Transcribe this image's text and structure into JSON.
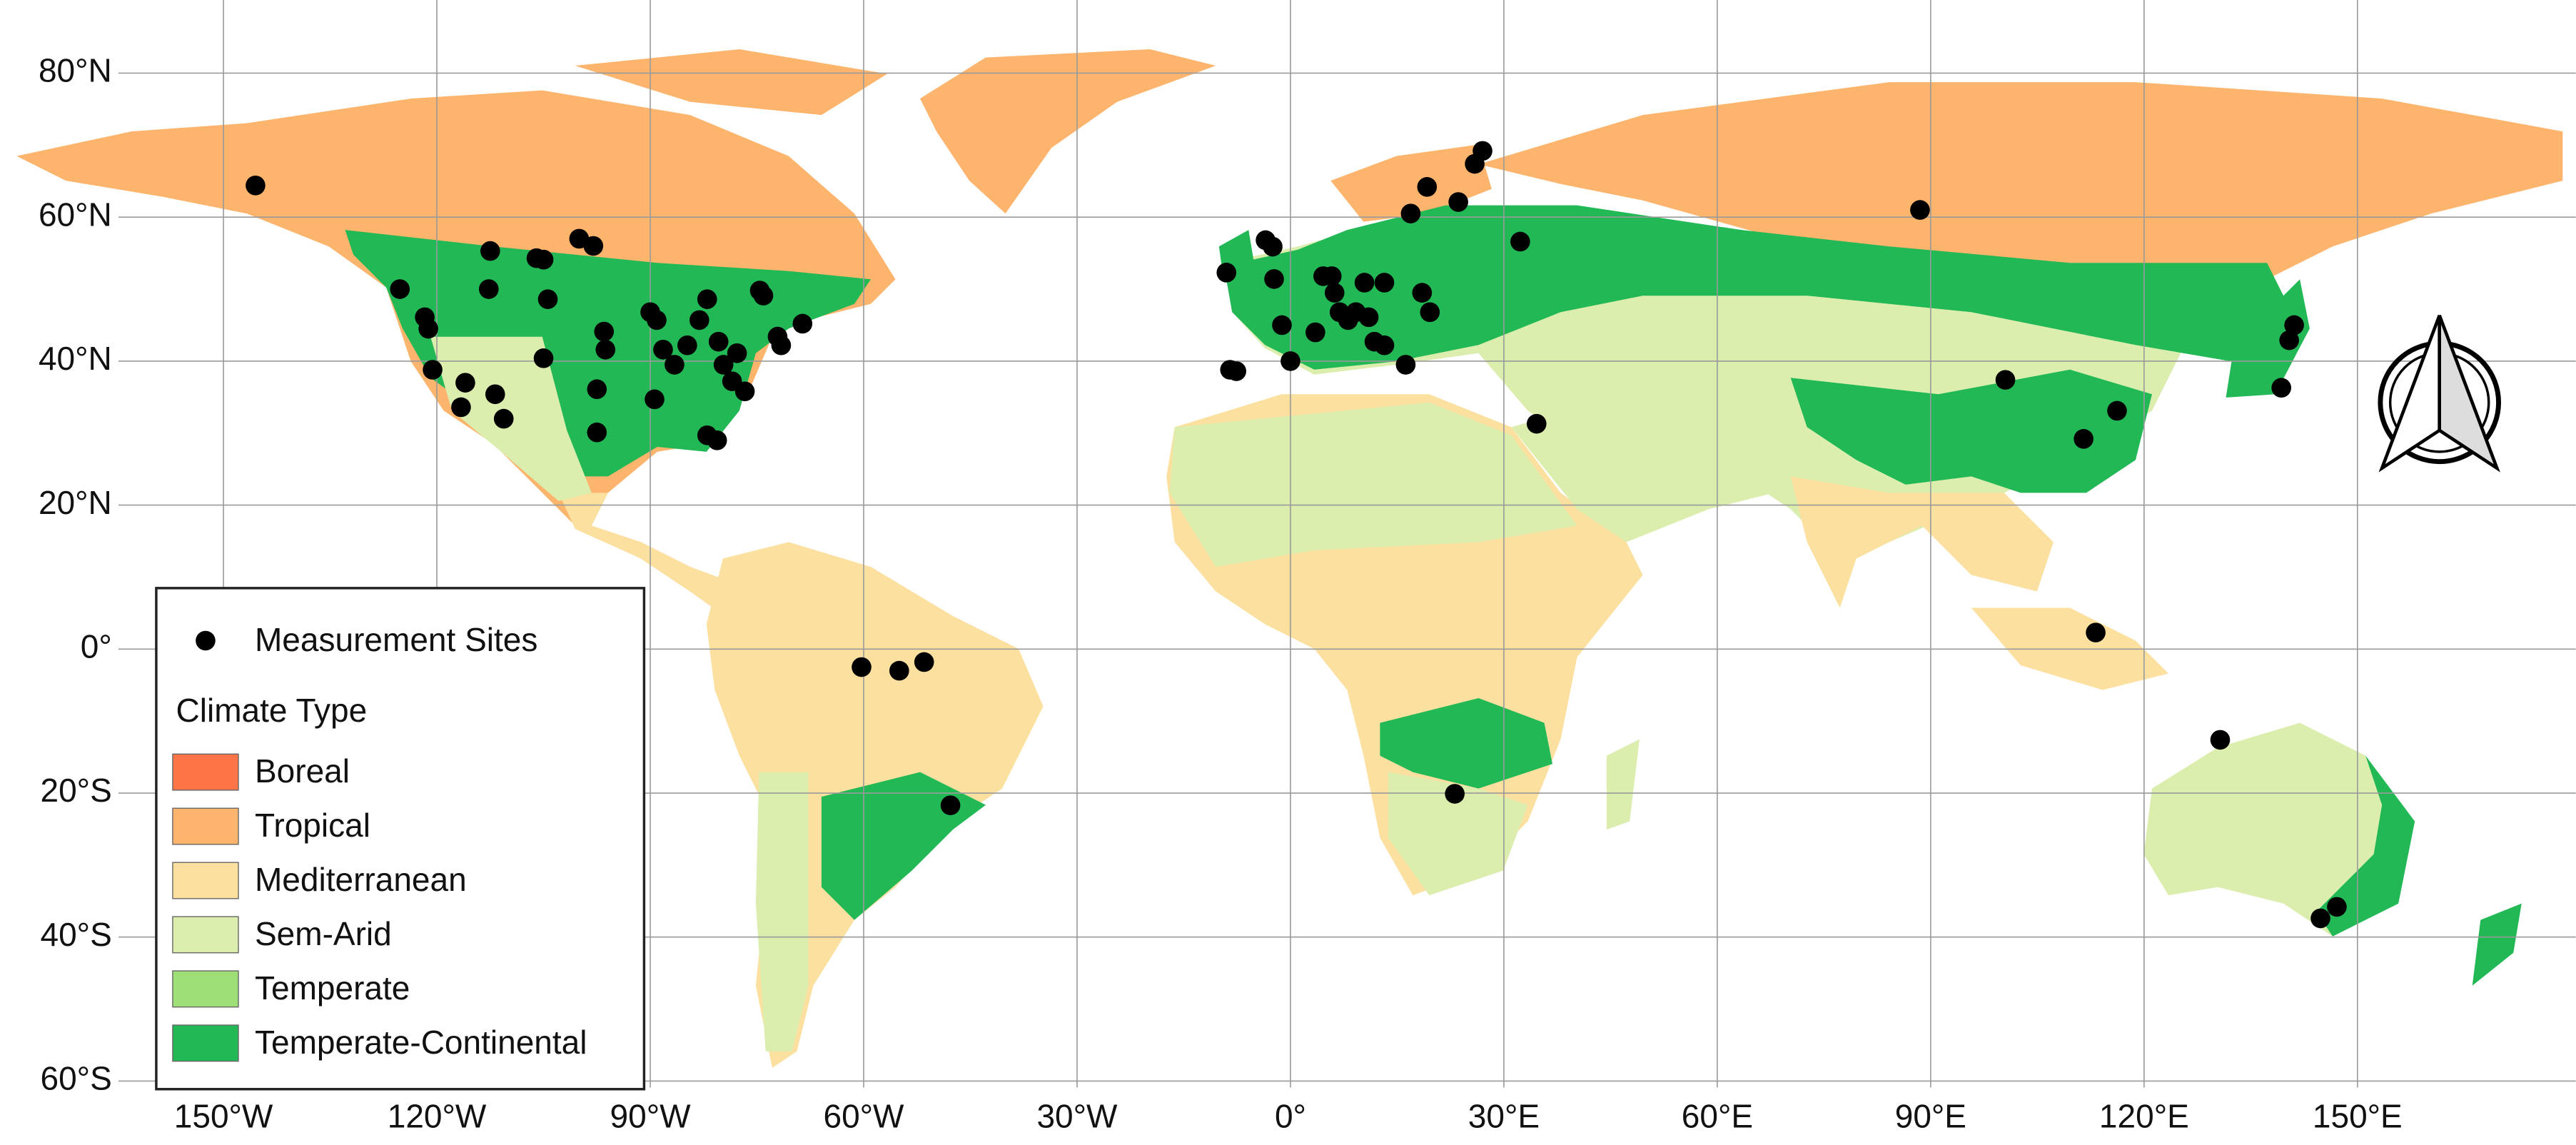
{
  "chart_data": {
    "type": "map",
    "xlim": [
      -180,
      180
    ],
    "ylim": [
      -65,
      84
    ],
    "grid": true,
    "xticks": [
      {
        "value": -150,
        "label": "150°W"
      },
      {
        "value": -120,
        "label": "120°W"
      },
      {
        "value": -90,
        "label": "90°W"
      },
      {
        "value": -60,
        "label": "60°W"
      },
      {
        "value": -30,
        "label": "30°W"
      },
      {
        "value": 0,
        "label": "0°"
      },
      {
        "value": 30,
        "label": "30°E"
      },
      {
        "value": 60,
        "label": "60°E"
      },
      {
        "value": 90,
        "label": "90°E"
      },
      {
        "value": 120,
        "label": "120°E"
      },
      {
        "value": 150,
        "label": "150°E"
      }
    ],
    "yticks": [
      {
        "value": 80,
        "label": "80°N"
      },
      {
        "value": 60,
        "label": "60°N"
      },
      {
        "value": 40,
        "label": "40°N"
      },
      {
        "value": 20,
        "label": "20°N"
      },
      {
        "value": 0,
        "label": "0°"
      },
      {
        "value": -20,
        "label": "20°S"
      },
      {
        "value": -40,
        "label": "40°S"
      },
      {
        "value": -60,
        "label": "60°S"
      }
    ],
    "series": [
      {
        "name": "Measurement Sites",
        "color": "#000000",
        "x": [
          -145.5,
          -125.2,
          -121.7,
          -121.2,
          -120.6,
          -116.6,
          -116,
          -112.7,
          -112.5,
          -111.8,
          -110.6,
          -106,
          -105,
          -104.4,
          -105,
          -100,
          -98,
          -97.5,
          -97.5,
          -96.5,
          -96.3,
          -90,
          -89.4,
          -89.1,
          -88.2,
          -86.6,
          -84.8,
          -83.1,
          -82,
          -82,
          -80.6,
          -80.4,
          -79.7,
          -78.5,
          -76.7,
          -77.8,
          -74.6,
          -74.1,
          -72.1,
          -71.6,
          -68.6,
          -9,
          -8.5,
          -7.6,
          -3.5,
          -2.5,
          -2.3,
          -1.2,
          0,
          3.5,
          4.6,
          5.8,
          6.2,
          6.9,
          8.1,
          9.2,
          10.4,
          11,
          11.8,
          13.2,
          13.2,
          16.2,
          16.9,
          18.5,
          19.2,
          19.6,
          23.6,
          25.9,
          27,
          32.3,
          34.6,
          88.5,
          100.5,
          111.5,
          116.2,
          139.3,
          140.4,
          141.1,
          113.2,
          -60.3,
          -55,
          -51.5,
          -47.8,
          23.1,
          130.7,
          144.8,
          147.1
        ],
        "y": [
          64.4,
          50,
          46.1,
          44.5,
          38.8,
          33.6,
          37,
          50,
          55.3,
          35.4,
          32,
          54.3,
          54.1,
          48.6,
          40.4,
          57,
          56,
          30.1,
          36.1,
          44.1,
          41.6,
          46.8,
          34.7,
          45.7,
          41.6,
          39.5,
          42.2,
          45.7,
          48.6,
          29.7,
          29,
          42.7,
          39.5,
          37.2,
          35.8,
          41.1,
          49.8,
          49.1,
          43.4,
          42.2,
          45.2,
          52.3,
          38.8,
          38.6,
          56.8,
          55.9,
          51.4,
          45,
          40,
          44,
          51.8,
          51.8,
          49.5,
          46.8,
          45.7,
          46.8,
          50.9,
          46.1,
          42.7,
          42.2,
          50.9,
          39.5,
          60.5,
          49.5,
          64.2,
          46.8,
          62.1,
          67.4,
          69.2,
          56.6,
          31.3,
          61,
          37.4,
          29.2,
          33.1,
          36.3,
          42.9,
          45,
          2.3,
          -2.5,
          -3,
          -1.8,
          -21.7,
          -20.1,
          -12.6,
          -37.4,
          -35.8
        ]
      }
    ],
    "legend": {
      "title": "Climate Type",
      "items": [
        {
          "name": "Boreal",
          "color": "#fd7446"
        },
        {
          "name": "Tropical",
          "color": "#fdb46c"
        },
        {
          "name": "Mediterranean",
          "color": "#fbe0a0"
        },
        {
          "name": "Sem-Arid",
          "color": "#dbeeae"
        },
        {
          "name": "Temperate",
          "color": "#9edf78"
        },
        {
          "name": "Temperate-Continental",
          "color": "#22b856"
        }
      ]
    }
  }
}
